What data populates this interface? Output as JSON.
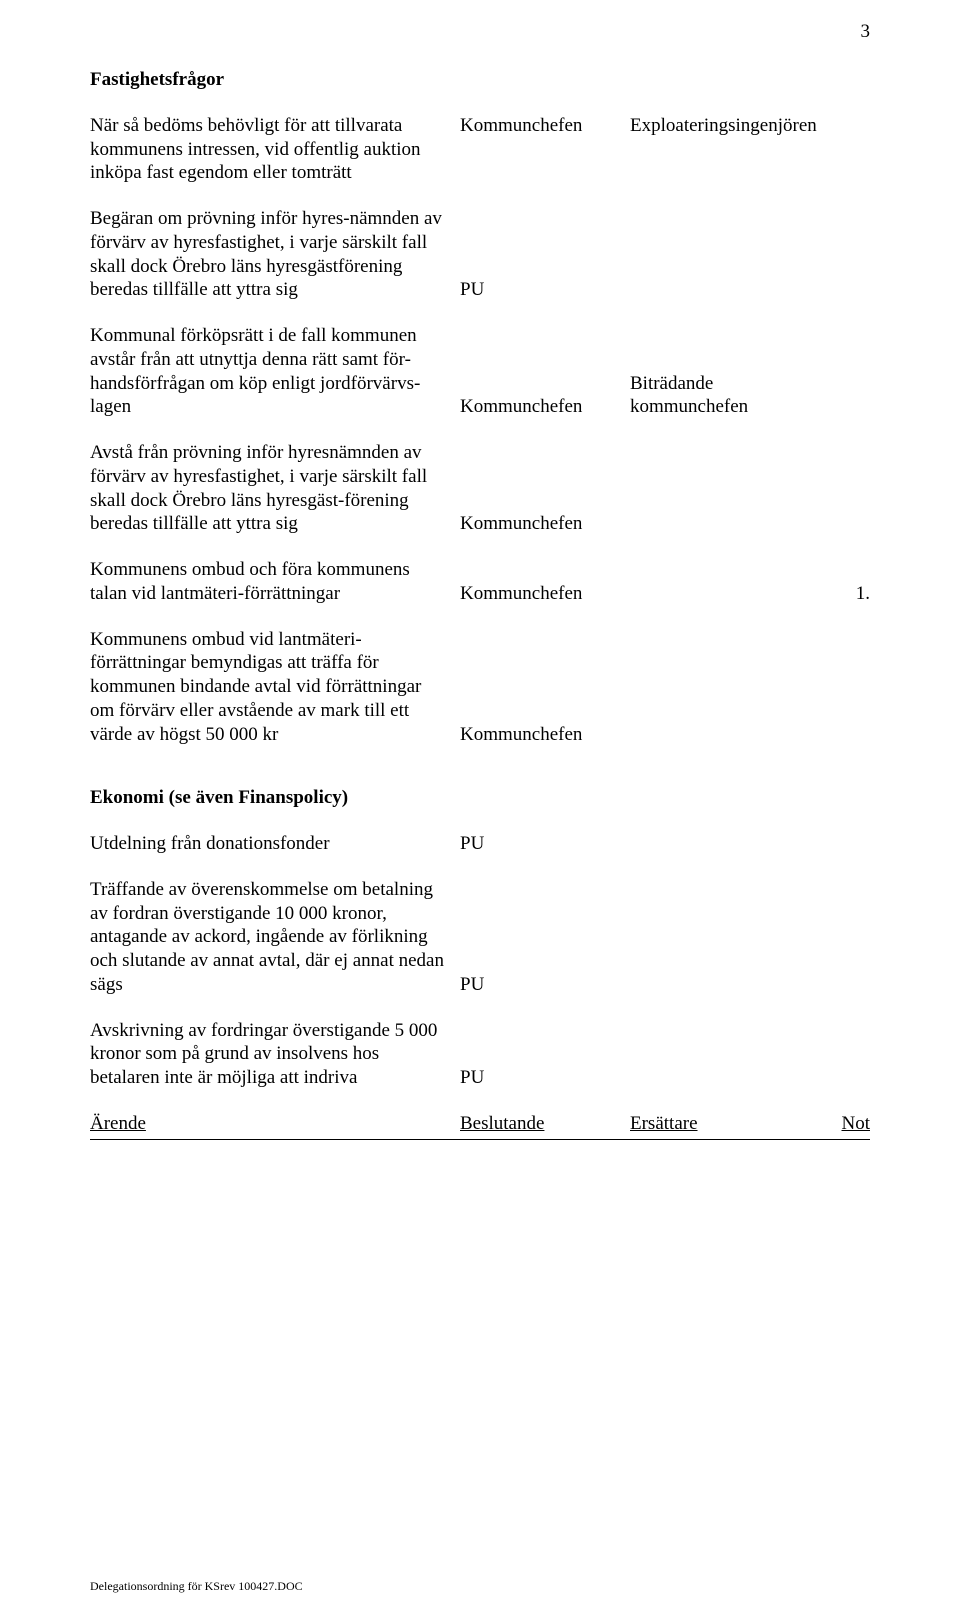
{
  "page_number": "3",
  "section1": {
    "heading": "Fastighetsfrågor",
    "rows": [
      {
        "desc": "När så bedöms behövligt för att tillvarata kommunens intressen, vid offentlig auktion inköpa fast egendom eller tomträtt",
        "beslut": "Kommunchefen",
        "ersatt": "Exploateringsingenjören",
        "not": ""
      },
      {
        "desc": "Begäran om prövning inför hyres-nämnden av förvärv av hyresfastighet, i varje särskilt fall skall dock Örebro läns hyresgästförening beredas tillfälle att yttra sig",
        "beslut": "PU",
        "ersatt": "",
        "not": ""
      },
      {
        "desc": "Kommunal förköpsrätt i de fall kommunen avstår från att utnyttja denna rätt samt för-handsförfrågan om köp enligt jordförvärvs-lagen",
        "beslut": "Kommunchefen",
        "ersatt": "Biträdande kommunchefen",
        "not": ""
      },
      {
        "desc": "Avstå från prövning inför hyresnämnden av förvärv av hyresfastighet, i varje särskilt fall skall dock Örebro läns hyresgäst-förening beredas tillfälle att yttra sig",
        "beslut": "Kommunchefen",
        "ersatt": "",
        "not": ""
      },
      {
        "desc": "Kommunens ombud och föra kommunens talan vid lantmäteri-förrättningar",
        "beslut": "Kommunchefen",
        "ersatt": "",
        "not": "1."
      },
      {
        "desc": "Kommunens ombud vid lantmäteri-förrättningar bemyndigas att träffa för kommunen bindande avtal vid förrättningar om förvärv eller avstående av mark till ett värde av högst 50 000 kr",
        "beslut": "Kommunchefen",
        "ersatt": "",
        "not": ""
      }
    ]
  },
  "section2": {
    "heading": "Ekonomi  (se även Finanspolicy)",
    "rows": [
      {
        "desc": "Utdelning från donationsfonder",
        "beslut": "PU",
        "ersatt": "",
        "not": ""
      },
      {
        "desc": "Träffande av överenskommelse om betalning av fordran överstigande 10 000 kronor, antagande av ackord, ingående av förlikning och slutande av annat avtal, där ej annat nedan sägs",
        "beslut": "PU",
        "ersatt": "",
        "not": ""
      },
      {
        "desc": "Avskrivning av fordringar överstigande 5 000 kronor som på grund av insolvens hos betalaren inte är möjliga att indriva",
        "beslut": "PU",
        "ersatt": "",
        "not": ""
      }
    ]
  },
  "footer": {
    "c1": "Ärende",
    "c2": "Beslutande",
    "c3": "Ersättare",
    "c4": "Not"
  },
  "doc_footer": "Delegationsordning för KSrev 100427.DOC"
}
